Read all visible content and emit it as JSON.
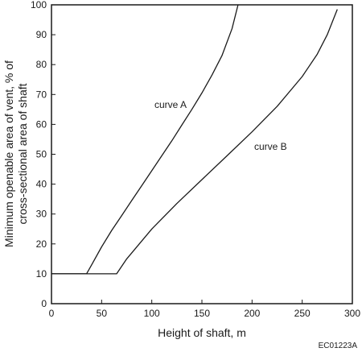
{
  "chart_data": {
    "type": "line",
    "title": "",
    "xlabel": "Height of shaft, m",
    "ylabel_lines": [
      "Minimum openable area of vent, % of",
      "cross-sectional area of shaft"
    ],
    "xlim": [
      0,
      300
    ],
    "ylim": [
      0,
      100
    ],
    "x_ticks": [
      0,
      50,
      100,
      150,
      200,
      250,
      300
    ],
    "y_ticks": [
      0,
      10,
      20,
      30,
      40,
      50,
      60,
      70,
      80,
      90,
      100
    ],
    "grid": false,
    "figure_code": "EC01223A",
    "series": [
      {
        "name": "curve A",
        "points": [
          [
            0,
            10
          ],
          [
            35,
            10
          ],
          [
            40,
            13
          ],
          [
            50,
            19
          ],
          [
            60,
            24.5
          ],
          [
            70,
            29.5
          ],
          [
            80,
            34.5
          ],
          [
            90,
            39.5
          ],
          [
            100,
            44.5
          ],
          [
            110,
            49.5
          ],
          [
            120,
            54.5
          ],
          [
            130,
            59.8
          ],
          [
            140,
            65
          ],
          [
            150,
            70.5
          ],
          [
            160,
            76.5
          ],
          [
            170,
            83
          ],
          [
            180,
            92
          ],
          [
            186,
            100
          ]
        ]
      },
      {
        "name": "curve B",
        "points": [
          [
            0,
            10
          ],
          [
            65,
            10
          ],
          [
            75,
            15
          ],
          [
            100,
            25
          ],
          [
            125,
            33.5
          ],
          [
            150,
            41.5
          ],
          [
            175,
            49.5
          ],
          [
            200,
            57.5
          ],
          [
            225,
            66
          ],
          [
            250,
            76
          ],
          [
            265,
            83.5
          ],
          [
            275,
            90
          ],
          [
            285,
            98.5
          ]
        ]
      }
    ]
  }
}
